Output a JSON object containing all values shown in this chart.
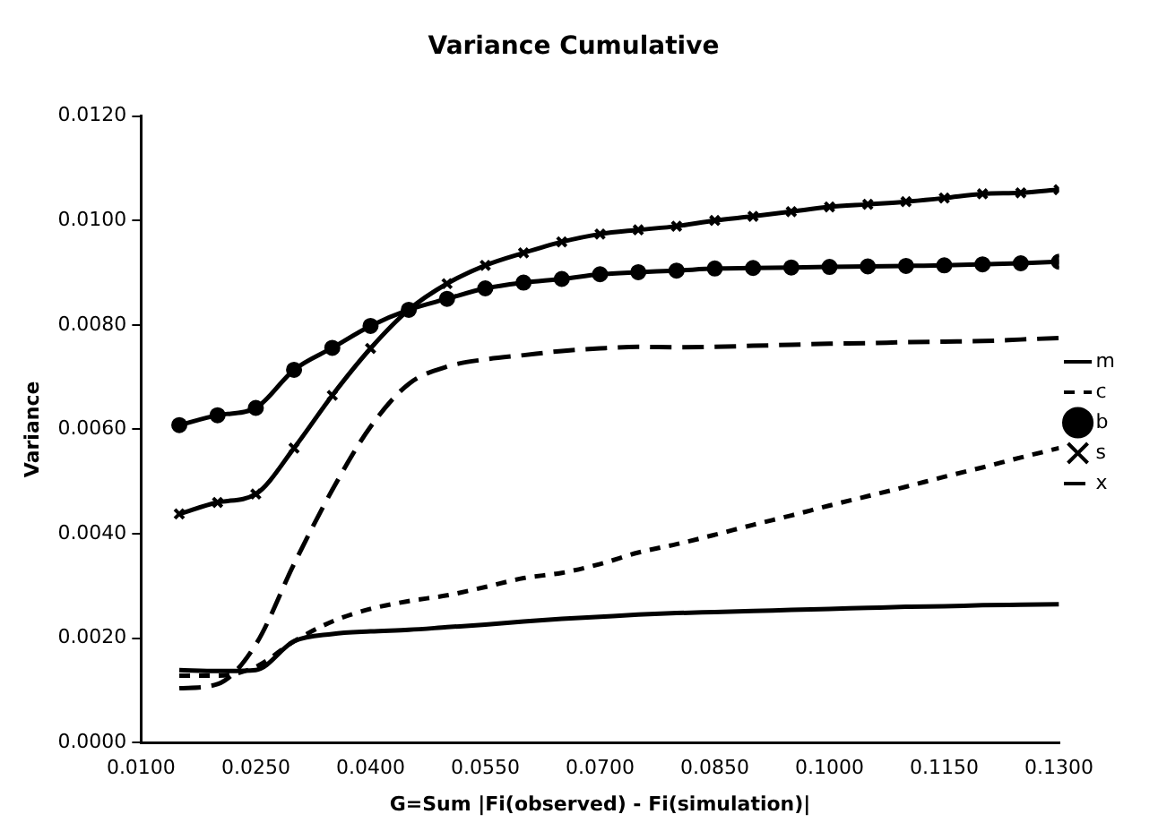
{
  "chart_data": {
    "type": "line",
    "title": "Variance Cumulative",
    "xlabel": "G=Sum |Fi(observed) - Fi(simulation)|",
    "ylabel": "Variance",
    "x": [
      0.015,
      0.02,
      0.025,
      0.03,
      0.035,
      0.04,
      0.045,
      0.05,
      0.055,
      0.06,
      0.065,
      0.07,
      0.075,
      0.08,
      0.085,
      0.09,
      0.095,
      0.1,
      0.105,
      0.11,
      0.115,
      0.12,
      0.125,
      0.13
    ],
    "series": [
      {
        "name": "m",
        "color": "#000000",
        "line_style": "solid",
        "marker": "none",
        "values": [
          0.00139,
          0.00137,
          0.00139,
          0.00194,
          0.00208,
          0.00213,
          0.00216,
          0.00221,
          0.00226,
          0.00232,
          0.00237,
          0.00241,
          0.00245,
          0.00248,
          0.0025,
          0.00252,
          0.00254,
          0.00256,
          0.00258,
          0.0026,
          0.00261,
          0.00263,
          0.00264,
          0.00265
        ]
      },
      {
        "name": "c",
        "color": "#000000",
        "line_style": "dotted",
        "marker": "none",
        "values": [
          0.00128,
          0.00128,
          0.00145,
          0.00194,
          0.00232,
          0.00256,
          0.00271,
          0.00282,
          0.00298,
          0.00315,
          0.00325,
          0.00342,
          0.00364,
          0.0038,
          0.00398,
          0.00417,
          0.00435,
          0.00454,
          0.00472,
          0.0049,
          0.00509,
          0.00527,
          0.00546,
          0.00564
        ]
      },
      {
        "name": "b",
        "color": "#000000",
        "line_style": "solid",
        "marker": "circle",
        "values": [
          0.00608,
          0.00627,
          0.00641,
          0.00714,
          0.00756,
          0.00798,
          0.00829,
          0.0085,
          0.0087,
          0.00881,
          0.00888,
          0.00897,
          0.00901,
          0.00904,
          0.00908,
          0.00909,
          0.0091,
          0.00911,
          0.00912,
          0.00913,
          0.00914,
          0.00916,
          0.00918,
          0.00921
        ]
      },
      {
        "name": "s",
        "color": "#000000",
        "line_style": "solid",
        "marker": "cross",
        "values": [
          0.00438,
          0.0046,
          0.00476,
          0.00564,
          0.00665,
          0.00755,
          0.00829,
          0.00879,
          0.00914,
          0.00938,
          0.00959,
          0.00974,
          0.00982,
          0.00989,
          0.01,
          0.01008,
          0.01017,
          0.01026,
          0.01031,
          0.01036,
          0.01043,
          0.01051,
          0.01053,
          0.01059
        ]
      },
      {
        "name": "x",
        "color": "#000000",
        "line_style": "dashed",
        "marker": "none",
        "values": [
          0.00104,
          0.00112,
          0.00188,
          0.00342,
          0.00484,
          0.00605,
          0.00687,
          0.0072,
          0.00734,
          0.00742,
          0.0075,
          0.00755,
          0.00758,
          0.00757,
          0.00758,
          0.0076,
          0.00762,
          0.00764,
          0.00765,
          0.00767,
          0.00768,
          0.00769,
          0.00772,
          0.00775
        ]
      }
    ],
    "xlim": [
      0.01,
      0.13
    ],
    "xticks": [
      {
        "value": 0.01,
        "label": "0.0100"
      },
      {
        "value": 0.025,
        "label": "0.0250"
      },
      {
        "value": 0.04,
        "label": "0.0400"
      },
      {
        "value": 0.055,
        "label": "0.0550"
      },
      {
        "value": 0.07,
        "label": "0.0700"
      },
      {
        "value": 0.085,
        "label": "0.0850"
      },
      {
        "value": 0.1,
        "label": "0.1000"
      },
      {
        "value": 0.115,
        "label": "0.1150"
      },
      {
        "value": 0.13,
        "label": "0.1300"
      }
    ],
    "ylim": [
      0,
      0.012
    ],
    "yticks": [
      {
        "value": 0,
        "label": "0.0000"
      },
      {
        "value": 0.002,
        "label": "0.0020"
      },
      {
        "value": 0.004,
        "label": "0.0040"
      },
      {
        "value": 0.006,
        "label": "0.0060"
      },
      {
        "value": 0.008,
        "label": "0.0080"
      },
      {
        "value": 0.01,
        "label": "0.0100"
      },
      {
        "value": 0.012,
        "label": "0.0120"
      }
    ],
    "grid": false,
    "legend": "right"
  }
}
